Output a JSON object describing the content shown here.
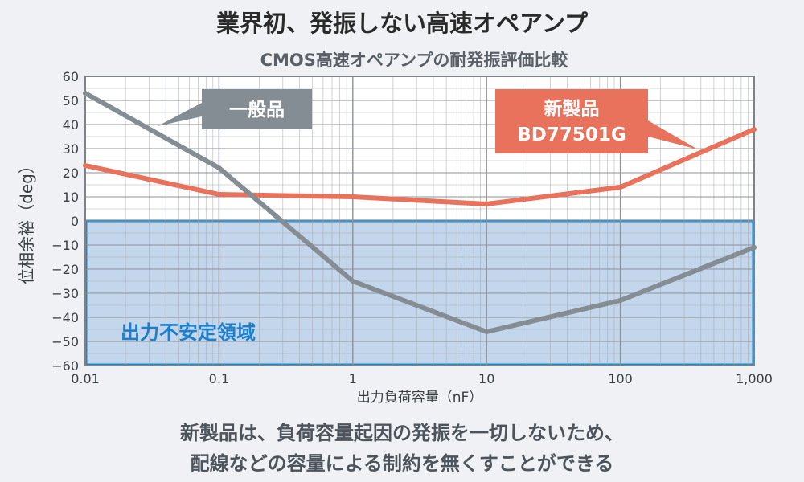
{
  "header": {
    "title": "業界初、発振しない高速オペアンプ",
    "subtitle": "CMOS高速オペアンプの耐発振評価比較"
  },
  "footnote": {
    "line1": "新製品は、負荷容量起因の発振を一切しないため、",
    "line2": "配線などの容量による制約を無くすことができる"
  },
  "colors": {
    "new_product": "#e8725b",
    "general": "#858d94",
    "unstable_fill": "#c3d6ec",
    "unstable_border": "#1a8ad2",
    "unstable_label": "#1a7fcf",
    "grid": "#a5a9ad",
    "axis_text": "#3a3f44"
  },
  "chart_data": {
    "type": "line",
    "xscale": "log",
    "xlim": [
      0.01,
      1000
    ],
    "ylim": [
      -60,
      60
    ],
    "xlabel": "出力負荷容量（nF）",
    "ylabel": "位相余裕（deg）",
    "xticks": [
      {
        "value": 0.01,
        "label": "0.01"
      },
      {
        "value": 0.1,
        "label": "0.1"
      },
      {
        "value": 1,
        "label": "1"
      },
      {
        "value": 10,
        "label": "10"
      },
      {
        "value": 100,
        "label": "100"
      },
      {
        "value": 1000,
        "label": "1,000"
      }
    ],
    "yticks": [
      {
        "value": 60,
        "label": "60"
      },
      {
        "value": 50,
        "label": "50"
      },
      {
        "value": 40,
        "label": "40"
      },
      {
        "value": 30,
        "label": "30"
      },
      {
        "value": 20,
        "label": "20"
      },
      {
        "value": 10,
        "label": "10"
      },
      {
        "value": 0,
        "label": "0"
      },
      {
        "value": -10,
        "label": "−10"
      },
      {
        "value": -20,
        "label": "−20"
      },
      {
        "value": -30,
        "label": "−30"
      },
      {
        "value": -40,
        "label": "−40"
      },
      {
        "value": -50,
        "label": "−50"
      },
      {
        "value": -60,
        "label": "−60"
      }
    ],
    "grid": true,
    "series": [
      {
        "name": "新製品 BD77501G",
        "label_lines": [
          "新製品",
          "BD77501G"
        ],
        "color": "#e8725b",
        "points": [
          [
            0.01,
            23
          ],
          [
            0.1,
            11
          ],
          [
            1,
            10
          ],
          [
            10,
            7
          ],
          [
            100,
            14
          ],
          [
            1000,
            38
          ]
        ]
      },
      {
        "name": "一般品",
        "label_lines": [
          "一般品"
        ],
        "color": "#858d94",
        "points": [
          [
            0.01,
            53
          ],
          [
            0.1,
            22
          ],
          [
            1,
            -25
          ],
          [
            10,
            -46
          ],
          [
            100,
            -33
          ],
          [
            1000,
            -11
          ]
        ]
      }
    ],
    "regions": [
      {
        "label": "出力不安定領域",
        "y_from": -60,
        "y_to": 0
      }
    ]
  }
}
